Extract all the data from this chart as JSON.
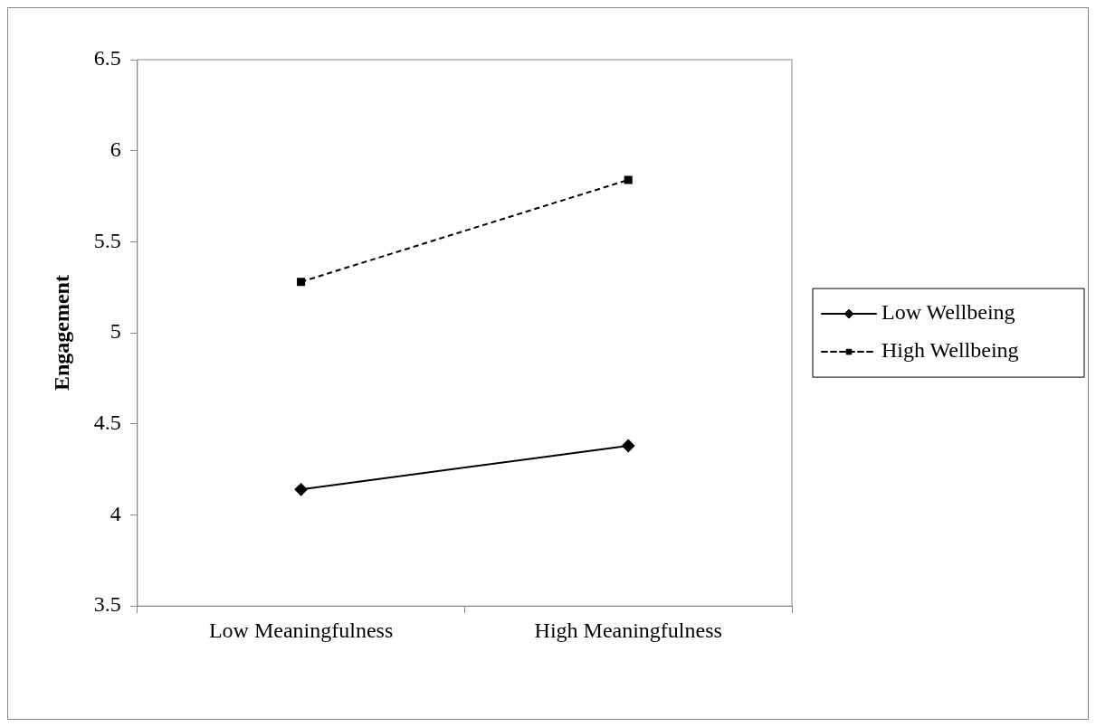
{
  "chart_data": {
    "type": "line",
    "ylabel": "Engagement",
    "categories": [
      "Low Meaningfulness",
      "High Meaningfulness"
    ],
    "series": [
      {
        "name": "Low Wellbeing",
        "color": "#000000",
        "values": [
          4.14,
          4.38
        ],
        "marker": "diamond",
        "line_style": "solid"
      },
      {
        "name": "High Wellbeing",
        "color": "#000000",
        "values": [
          5.28,
          5.84
        ],
        "marker": "square",
        "line_style": "dashed"
      }
    ],
    "ylim": [
      3.5,
      6.5
    ],
    "yticks": [
      3.5,
      4,
      4.5,
      5,
      5.5,
      6,
      6.5
    ],
    "grid": false,
    "legend": "right"
  }
}
